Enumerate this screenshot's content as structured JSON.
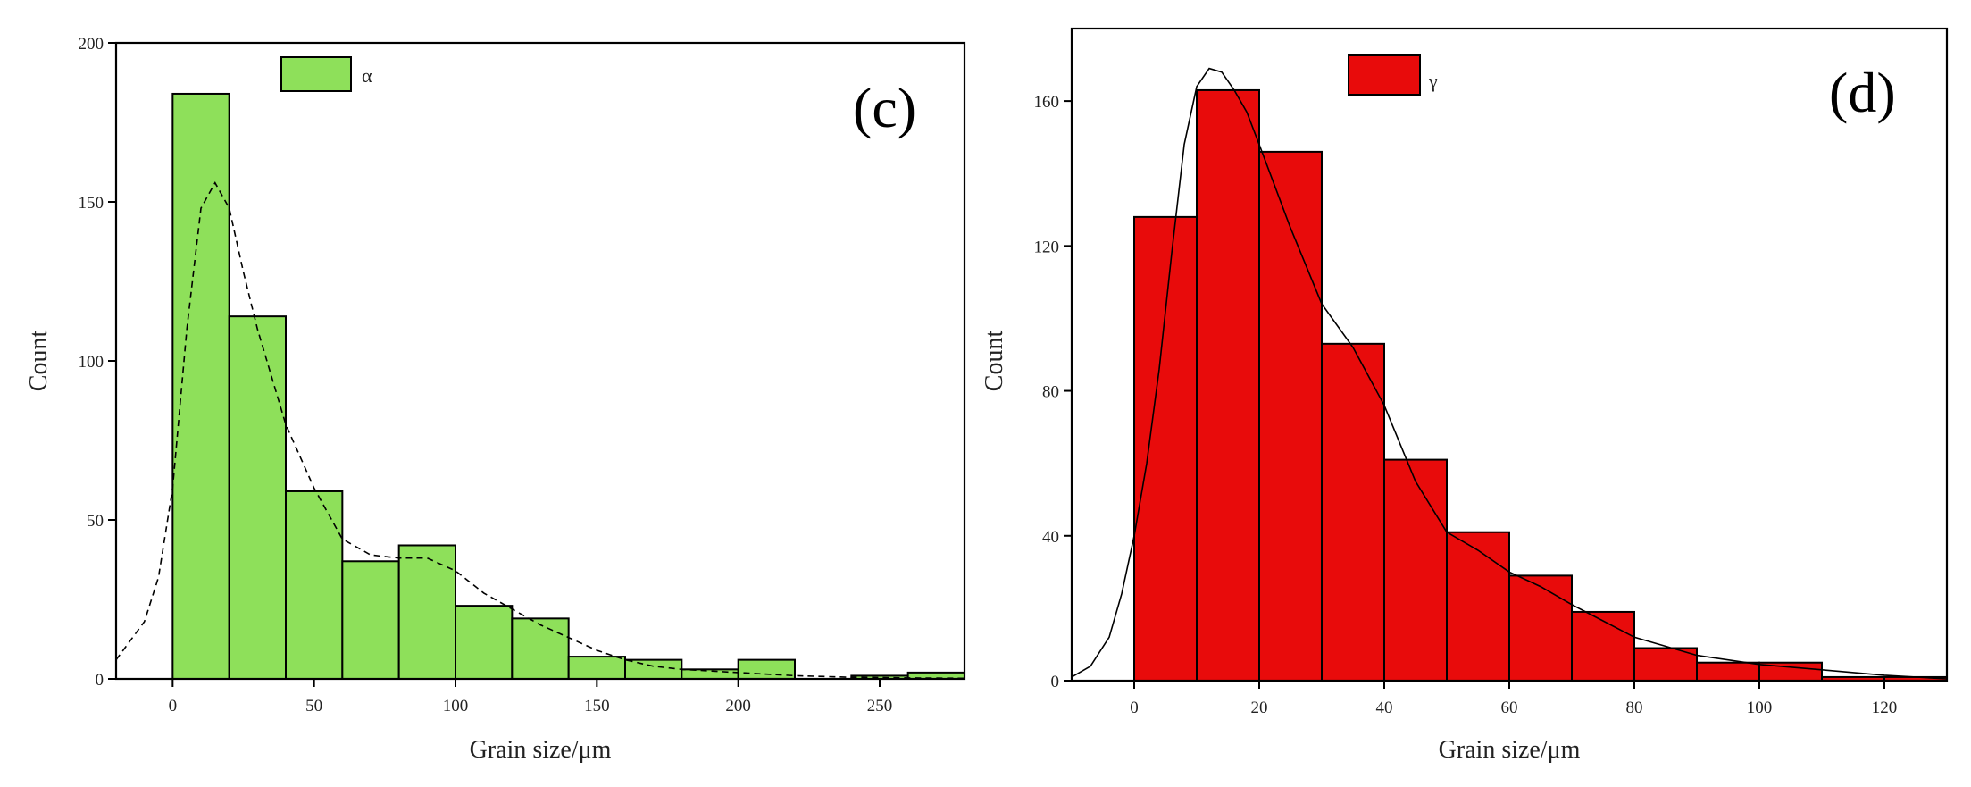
{
  "chart_data": [
    {
      "type": "bar",
      "panel_label": "(c)",
      "legend": "α",
      "xlabel": "Grain size/μm",
      "ylabel": "Count",
      "xlim": [
        -20,
        280
      ],
      "ylim": [
        0,
        200
      ],
      "xticks": [
        0,
        50,
        100,
        150,
        200,
        250
      ],
      "yticks": [
        0,
        50,
        100,
        150,
        200
      ],
      "bin_edges": [
        0,
        20,
        40,
        60,
        80,
        100,
        120,
        140,
        160,
        180,
        200,
        220,
        240,
        260,
        280
      ],
      "values": [
        184,
        114,
        59,
        37,
        42,
        23,
        19,
        7,
        6,
        3,
        6,
        0,
        1,
        2
      ],
      "fit_curve": {
        "x": [
          -20,
          -10,
          -5,
          0,
          5,
          10,
          15,
          20,
          25,
          30,
          40,
          50,
          60,
          70,
          80,
          90,
          100,
          110,
          120,
          130,
          140,
          150,
          160,
          170,
          180,
          200,
          220,
          240,
          260,
          280
        ],
        "y": [
          6,
          18,
          32,
          60,
          110,
          148,
          156,
          148,
          128,
          110,
          80,
          60,
          44,
          39,
          38,
          38,
          34,
          27,
          22,
          17,
          13,
          9,
          6,
          4,
          3,
          2,
          1,
          0.5,
          0.3,
          0.2
        ]
      },
      "colors": {
        "bar": "#8ee05a",
        "fit": "#000000"
      },
      "legend_position": "top-left",
      "grid": false
    },
    {
      "type": "bar",
      "panel_label": "(d)",
      "legend": "γ",
      "xlabel": "Grain size/μm",
      "ylabel": "Count",
      "xlim": [
        -10,
        130
      ],
      "ylim": [
        0,
        180
      ],
      "xticks": [
        0,
        20,
        40,
        60,
        80,
        100,
        120
      ],
      "yticks": [
        0,
        40,
        80,
        120,
        160
      ],
      "bin_edges": [
        0,
        10,
        20,
        30,
        40,
        50,
        60,
        70,
        80,
        90,
        100,
        110,
        120,
        130
      ],
      "values": [
        128,
        163,
        146,
        93,
        61,
        41,
        29,
        19,
        9,
        5,
        5,
        1,
        1
      ],
      "fit_curve": {
        "x": [
          -10,
          -7,
          -4,
          -2,
          0,
          2,
          4,
          6,
          8,
          10,
          12,
          14,
          16,
          18,
          20,
          25,
          30,
          35,
          40,
          45,
          50,
          55,
          60,
          65,
          70,
          80,
          90,
          100,
          110,
          120,
          130
        ],
        "y": [
          1,
          4,
          12,
          24,
          40,
          60,
          86,
          118,
          148,
          164,
          169,
          168,
          163,
          157,
          148,
          125,
          104,
          92,
          76,
          55,
          41,
          36,
          30,
          26,
          21,
          12,
          7,
          4.5,
          3,
          1.5,
          0.5
        ]
      },
      "colors": {
        "bar": "#e80b0b",
        "fit": "#000000"
      },
      "legend_position": "top-left",
      "grid": false
    }
  ]
}
